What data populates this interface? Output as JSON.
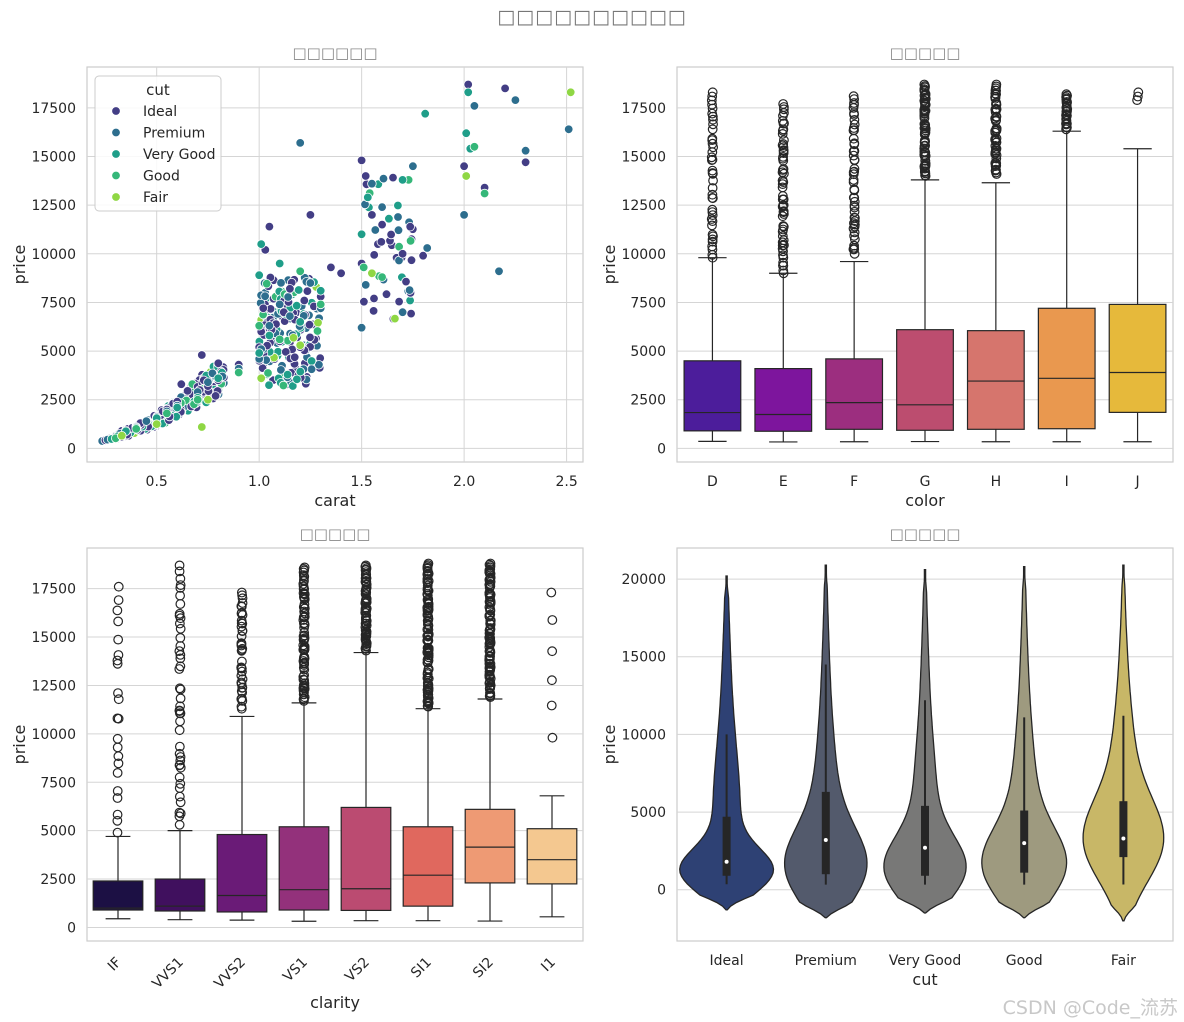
{
  "figure": {
    "suptitle": "□□□□□□□□□□",
    "watermark": "CSDN @Code_流苏"
  },
  "chart_data": [
    {
      "type": "scatter",
      "title": "□□□□□□",
      "xlabel": "carat",
      "ylabel": "price",
      "xlim": [
        0.16,
        2.58
      ],
      "ylim": [
        -700,
        19600
      ],
      "xticks": [
        0.5,
        1.0,
        1.5,
        2.0,
        2.5
      ],
      "xtick_labels": [
        "0.5",
        "1.0",
        "1.5",
        "2.0",
        "2.5"
      ],
      "yticks": [
        0,
        2500,
        5000,
        7500,
        10000,
        12500,
        15000,
        17500
      ],
      "legend": {
        "title": "cut",
        "placement": "top-left",
        "entries": [
          {
            "label": "Ideal",
            "color": "#433e85"
          },
          {
            "label": "Premium",
            "color": "#2d6e8e"
          },
          {
            "label": "Very Good",
            "color": "#1f9e89"
          },
          {
            "label": "Good",
            "color": "#35b779"
          },
          {
            "label": "Fair",
            "color": "#8fd744"
          }
        ]
      },
      "series": [
        {
          "name": "Ideal",
          "color": "#433e85",
          "points": [
            [
              0.25,
              420
            ],
            [
              0.27,
              500
            ],
            [
              0.3,
              650
            ],
            [
              0.31,
              700
            ],
            [
              0.32,
              800
            ],
            [
              0.33,
              900
            ],
            [
              0.35,
              950
            ],
            [
              0.36,
              1000
            ],
            [
              0.38,
              1050
            ],
            [
              0.4,
              1150
            ],
            [
              0.41,
              1200
            ],
            [
              0.42,
              1300
            ],
            [
              0.5,
              1500
            ],
            [
              0.52,
              1700
            ],
            [
              0.53,
              1900
            ],
            [
              0.55,
              2000
            ],
            [
              0.58,
              2300
            ],
            [
              0.6,
              2400
            ],
            [
              0.62,
              3300
            ],
            [
              0.7,
              2700
            ],
            [
              0.71,
              3000
            ],
            [
              0.72,
              4800
            ],
            [
              0.73,
              3500
            ],
            [
              0.75,
              3200
            ],
            [
              0.8,
              3500
            ],
            [
              0.9,
              4300
            ],
            [
              1.0,
              4500
            ],
            [
              1.0,
              5200
            ],
            [
              1.01,
              6000
            ],
            [
              1.02,
              7200
            ],
            [
              1.03,
              10200
            ],
            [
              1.05,
              11400
            ],
            [
              1.06,
              6100
            ],
            [
              1.1,
              5500
            ],
            [
              1.12,
              7000
            ],
            [
              1.15,
              8200
            ],
            [
              1.2,
              5200
            ],
            [
              1.22,
              7600
            ],
            [
              1.25,
              12000
            ],
            [
              1.3,
              7800
            ],
            [
              1.35,
              9300
            ],
            [
              1.4,
              9000
            ],
            [
              1.5,
              9500
            ],
            [
              1.5,
              14800
            ],
            [
              1.52,
              14000
            ],
            [
              1.55,
              12000
            ],
            [
              1.6,
              11500
            ],
            [
              1.7,
              10000
            ],
            [
              1.8,
              9900
            ],
            [
              2.0,
              14500
            ],
            [
              2.02,
              18700
            ],
            [
              2.1,
              13400
            ],
            [
              2.2,
              18500
            ],
            [
              2.3,
              14700
            ]
          ]
        },
        {
          "name": "Premium",
          "color": "#2d6e8e",
          "points": [
            [
              0.26,
              450
            ],
            [
              0.3,
              600
            ],
            [
              0.32,
              750
            ],
            [
              0.35,
              900
            ],
            [
              0.4,
              1100
            ],
            [
              0.45,
              1400
            ],
            [
              0.5,
              1600
            ],
            [
              0.55,
              1900
            ],
            [
              0.6,
              2200
            ],
            [
              0.7,
              2900
            ],
            [
              0.75,
              3400
            ],
            [
              0.82,
              3700
            ],
            [
              0.9,
              4100
            ],
            [
              1.0,
              4600
            ],
            [
              1.01,
              5100
            ],
            [
              1.05,
              6300
            ],
            [
              1.1,
              7400
            ],
            [
              1.15,
              6800
            ],
            [
              1.2,
              15700
            ],
            [
              1.25,
              8500
            ],
            [
              1.3,
              7200
            ],
            [
              1.5,
              6200
            ],
            [
              1.52,
              8400
            ],
            [
              1.55,
              13600
            ],
            [
              1.6,
              12400
            ],
            [
              1.7,
              7000
            ],
            [
              1.75,
              14500
            ],
            [
              1.82,
              10300
            ],
            [
              2.0,
              12000
            ],
            [
              2.05,
              17600
            ],
            [
              2.17,
              9100
            ],
            [
              2.25,
              17900
            ],
            [
              2.3,
              15300
            ],
            [
              2.51,
              16400
            ]
          ]
        },
        {
          "name": "Very Good",
          "color": "#1f9e89",
          "points": [
            [
              0.28,
              480
            ],
            [
              0.31,
              620
            ],
            [
              0.35,
              880
            ],
            [
              0.4,
              1050
            ],
            [
              0.5,
              1550
            ],
            [
              0.6,
              2100
            ],
            [
              0.7,
              2600
            ],
            [
              0.8,
              3600
            ],
            [
              1.0,
              4900
            ],
            [
              1.0,
              8900
            ],
            [
              1.01,
              10500
            ],
            [
              1.05,
              5800
            ],
            [
              1.1,
              9500
            ],
            [
              1.2,
              6500
            ],
            [
              1.3,
              8100
            ],
            [
              1.5,
              11000
            ],
            [
              1.53,
              12900
            ],
            [
              1.7,
              13800
            ],
            [
              1.81,
              17200
            ],
            [
              2.01,
              16200
            ],
            [
              2.02,
              18300
            ],
            [
              2.03,
              15400
            ]
          ]
        },
        {
          "name": "Good",
          "color": "#35b779",
          "points": [
            [
              0.3,
              520
            ],
            [
              0.4,
              1000
            ],
            [
              0.55,
              1800
            ],
            [
              0.7,
              2500
            ],
            [
              0.9,
              3900
            ],
            [
              1.0,
              6300
            ],
            [
              1.1,
              5600
            ],
            [
              1.2,
              9100
            ],
            [
              1.3,
              7400
            ],
            [
              1.51,
              9300
            ],
            [
              1.6,
              8800
            ],
            [
              2.05,
              15500
            ],
            [
              2.1,
              13100
            ]
          ]
        },
        {
          "name": "Fair",
          "color": "#8fd744",
          "points": [
            [
              0.33,
              650
            ],
            [
              0.5,
              1250
            ],
            [
              0.72,
              1100
            ],
            [
              0.75,
              2500
            ],
            [
              1.01,
              3600
            ],
            [
              1.2,
              5300
            ],
            [
              1.55,
              9000
            ],
            [
              2.01,
              14000
            ],
            [
              2.52,
              18300
            ]
          ]
        }
      ]
    },
    {
      "type": "box",
      "title": "□□□□□",
      "xlabel": "color",
      "ylabel": "price",
      "ylim": [
        -700,
        19600
      ],
      "yticks": [
        0,
        2500,
        5000,
        7500,
        10000,
        12500,
        15000,
        17500
      ],
      "categories": [
        "D",
        "E",
        "F",
        "G",
        "H",
        "I",
        "J"
      ],
      "colors": [
        "#4c1d9b",
        "#7d159d",
        "#9c2e7f",
        "#bc4d6f",
        "#d6756d",
        "#e9984f",
        "#e6b93b"
      ],
      "boxes": [
        {
          "whislo": 360,
          "q1": 900,
          "median": 1840,
          "q3": 4500,
          "whishi": 9800,
          "fliers_from": 9800,
          "fliers_to": 18300,
          "n_fliers": 40
        },
        {
          "whislo": 330,
          "q1": 880,
          "median": 1740,
          "q3": 4100,
          "whishi": 9000,
          "fliers_from": 9000,
          "fliers_to": 17700,
          "n_fliers": 60
        },
        {
          "whislo": 340,
          "q1": 980,
          "median": 2350,
          "q3": 4600,
          "whishi": 9600,
          "fliers_from": 10000,
          "fliers_to": 18100,
          "n_fliers": 50
        },
        {
          "whislo": 350,
          "q1": 930,
          "median": 2240,
          "q3": 6100,
          "whishi": 13800,
          "fliers_from": 14000,
          "fliers_to": 18700,
          "n_fliers": 70
        },
        {
          "whislo": 340,
          "q1": 980,
          "median": 3460,
          "q3": 6050,
          "whishi": 13650,
          "fliers_from": 14100,
          "fliers_to": 18700,
          "n_fliers": 55
        },
        {
          "whislo": 340,
          "q1": 1010,
          "median": 3600,
          "q3": 7200,
          "whishi": 16300,
          "fliers_from": 16400,
          "fliers_to": 18200,
          "n_fliers": 25
        },
        {
          "whislo": 340,
          "q1": 1850,
          "median": 3900,
          "q3": 7400,
          "whishi": 15400,
          "fliers_from": 17900,
          "fliers_to": 18300,
          "n_fliers": 3
        }
      ]
    },
    {
      "type": "box",
      "title": "□□□□□",
      "xlabel": "clarity",
      "ylabel": "price",
      "ylim": [
        -700,
        19600
      ],
      "yticks": [
        0,
        2500,
        5000,
        7500,
        10000,
        12500,
        15000,
        17500
      ],
      "categories": [
        "IF",
        "VVS1",
        "VVS2",
        "VS1",
        "VS2",
        "SI1",
        "SI2",
        "I1"
      ],
      "colors": [
        "#1c1044",
        "#40105e",
        "#6a1b77",
        "#93317b",
        "#bb4b71",
        "#e0685e",
        "#ee9a74",
        "#f4c890"
      ],
      "boxes": [
        {
          "whislo": 450,
          "q1": 900,
          "median": 1000,
          "q3": 2400,
          "whishi": 4700,
          "fliers_from": 4900,
          "fliers_to": 17600,
          "n_fliers": 22
        },
        {
          "whislo": 400,
          "q1": 850,
          "median": 1100,
          "q3": 2500,
          "whishi": 5000,
          "fliers_from": 5300,
          "fliers_to": 18700,
          "n_fliers": 45
        },
        {
          "whislo": 380,
          "q1": 800,
          "median": 1650,
          "q3": 4800,
          "whishi": 10900,
          "fliers_from": 11300,
          "fliers_to": 17300,
          "n_fliers": 40
        },
        {
          "whislo": 320,
          "q1": 900,
          "median": 1950,
          "q3": 5200,
          "whishi": 11600,
          "fliers_from": 11700,
          "fliers_to": 18600,
          "n_fliers": 80
        },
        {
          "whislo": 350,
          "q1": 880,
          "median": 2000,
          "q3": 6200,
          "whishi": 14200,
          "fliers_from": 14300,
          "fliers_to": 18700,
          "n_fliers": 70
        },
        {
          "whislo": 350,
          "q1": 1100,
          "median": 2700,
          "q3": 5200,
          "whishi": 11300,
          "fliers_from": 11400,
          "fliers_to": 18800,
          "n_fliers": 110
        },
        {
          "whislo": 330,
          "q1": 2300,
          "median": 4150,
          "q3": 6100,
          "whishi": 11800,
          "fliers_from": 11900,
          "fliers_to": 18800,
          "n_fliers": 110
        },
        {
          "whislo": 550,
          "q1": 2250,
          "median": 3500,
          "q3": 5100,
          "whishi": 6800,
          "fliers_from": 9800,
          "fliers_to": 17300,
          "n_fliers": 6
        }
      ]
    },
    {
      "type": "violin",
      "title": "□□□□□",
      "xlabel": "cut",
      "ylabel": "price",
      "ylim": [
        -3300,
        22000
      ],
      "yticks": [
        0,
        5000,
        10000,
        15000,
        20000
      ],
      "categories": [
        "Ideal",
        "Premium",
        "Very Good",
        "Good",
        "Fair"
      ],
      "colors": [
        "#2e4174",
        "#535a6c",
        "#787877",
        "#9e9a7f",
        "#c8b767"
      ],
      "violins": [
        {
          "min": -1300,
          "max": 20200,
          "q1": 900,
          "median": 1800,
          "q3": 4700,
          "whislo": 350,
          "whishi": 10000,
          "mode": 1200,
          "width": 0.8,
          "spread": 1400
        },
        {
          "min": -1800,
          "max": 20900,
          "q1": 1000,
          "median": 3200,
          "q3": 6300,
          "whislo": 330,
          "whishi": 14500,
          "mode": 1400,
          "width": 0.7,
          "spread": 2400
        },
        {
          "min": -1500,
          "max": 20600,
          "q1": 900,
          "median": 2700,
          "q3": 5400,
          "whislo": 330,
          "whishi": 12200,
          "mode": 1300,
          "width": 0.7,
          "spread": 2000
        },
        {
          "min": -1800,
          "max": 20800,
          "q1": 1100,
          "median": 3000,
          "q3": 5100,
          "whislo": 330,
          "whishi": 11100,
          "mode": 1500,
          "width": 0.72,
          "spread": 2300
        },
        {
          "min": -2000,
          "max": 20900,
          "q1": 2100,
          "median": 3300,
          "q3": 5700,
          "whislo": 340,
          "whishi": 11200,
          "mode": 3000,
          "width": 0.68,
          "spread": 2600
        }
      ]
    }
  ]
}
